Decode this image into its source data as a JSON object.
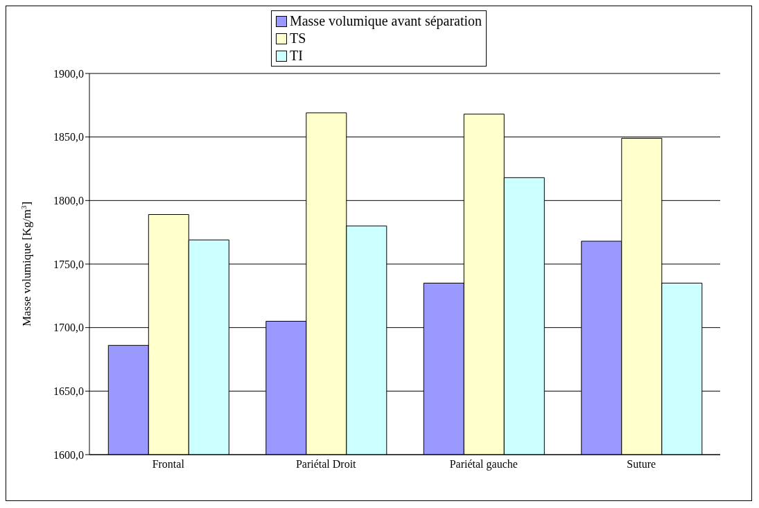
{
  "chart_data": {
    "type": "bar",
    "ylabel": "Masse volumique [Kg/m$^{3}$]",
    "categories": [
      "Frontal",
      "Pariétal Droit",
      "Pariétal gauche",
      "Suture"
    ],
    "series": [
      {
        "name": "Masse volumique avant séparation",
        "color": "#9999ff",
        "values": [
          1686,
          1705,
          1735,
          1768
        ]
      },
      {
        "name": "TS",
        "color": "#ffffcc",
        "values": [
          1789,
          1869,
          1868,
          1849
        ]
      },
      {
        "name": "TI",
        "color": "#ccffff",
        "values": [
          1769,
          1780,
          1818,
          1735
        ]
      }
    ],
    "ylim": [
      1600,
      1900
    ],
    "yticks": [
      {
        "value": 1600,
        "label": "1600,0"
      },
      {
        "value": 1650,
        "label": "1650,0"
      },
      {
        "value": 1700,
        "label": "1700,0"
      },
      {
        "value": 1750,
        "label": "1750,0"
      },
      {
        "value": 1800,
        "label": "1800,0"
      },
      {
        "value": 1850,
        "label": "1850,0"
      },
      {
        "value": 1900,
        "label": "1900,0"
      }
    ],
    "grid": "y",
    "legend": "top"
  }
}
